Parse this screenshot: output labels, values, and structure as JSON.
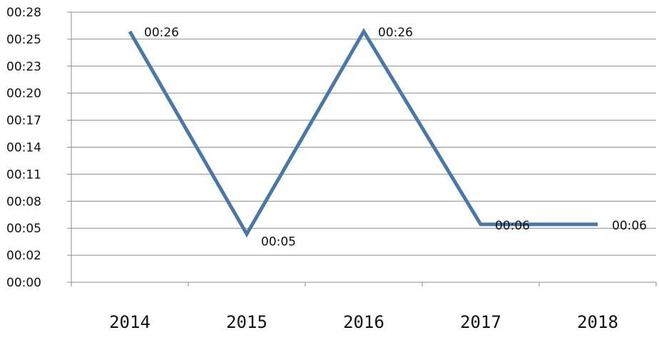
{
  "chart_data": {
    "type": "line",
    "title": "",
    "xlabel": "",
    "ylabel": "",
    "categories": [
      "2014",
      "2015",
      "2016",
      "2017",
      "2018"
    ],
    "y_tick_labels": [
      "00:00",
      "00:02",
      "00:05",
      "00:08",
      "00:11",
      "00:14",
      "00:17",
      "00:20",
      "00:23",
      "00:25",
      "00:28"
    ],
    "ylim_seconds": [
      0,
      28
    ],
    "series": [
      {
        "values_seconds": [
          26,
          5,
          26,
          6,
          6
        ],
        "data_labels": [
          "00:26",
          "00:05",
          "00:26",
          "00:06",
          "00:06"
        ],
        "color": "#4a77aa"
      }
    ],
    "grid": true,
    "legend": "none"
  }
}
